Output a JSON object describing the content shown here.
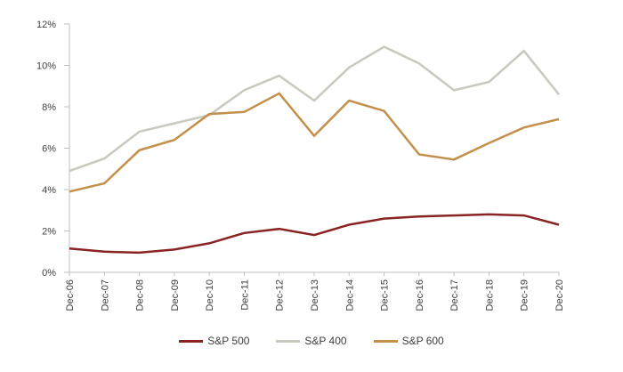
{
  "chart_data": {
    "type": "line",
    "title": "",
    "xlabel": "",
    "ylabel": "",
    "x": [
      "Dec-06",
      "Dec-07",
      "Dec-08",
      "Dec-09",
      "Dec-10",
      "Dec-11",
      "Dec-12",
      "Dec-13",
      "Dec-14",
      "Dec-15",
      "Dec-16",
      "Dec-17",
      "Dec-18",
      "Dec-19",
      "Dec-20"
    ],
    "series": [
      {
        "name": "S&P 500",
        "color": "#8a2424",
        "values": [
          1.15,
          1.0,
          0.95,
          1.1,
          1.4,
          1.9,
          2.1,
          1.8,
          2.3,
          2.6,
          2.7,
          2.75,
          2.8,
          2.75,
          2.3
        ]
      },
      {
        "name": "S&P 400",
        "color": "#c7cabe",
        "values": [
          4.9,
          5.5,
          6.8,
          7.2,
          7.6,
          8.8,
          9.5,
          8.3,
          9.9,
          10.9,
          10.1,
          8.8,
          9.2,
          10.7,
          8.6
        ]
      },
      {
        "name": "S&P 600",
        "color": "#c3904b",
        "values": [
          3.9,
          4.3,
          5.9,
          6.4,
          7.65,
          7.75,
          8.65,
          6.6,
          8.3,
          7.8,
          5.7,
          5.45,
          6.25,
          7.0,
          7.4
        ]
      }
    ],
    "ylim": [
      0,
      12
    ],
    "y_tick_step": 2,
    "y_tick_labels": [
      "0%",
      "2%",
      "4%",
      "6%",
      "8%",
      "10%",
      "12%"
    ],
    "grid": false,
    "legend_position": "bottom",
    "axis_color": "#bfbfbf",
    "label_color": "#3d3d3d"
  }
}
